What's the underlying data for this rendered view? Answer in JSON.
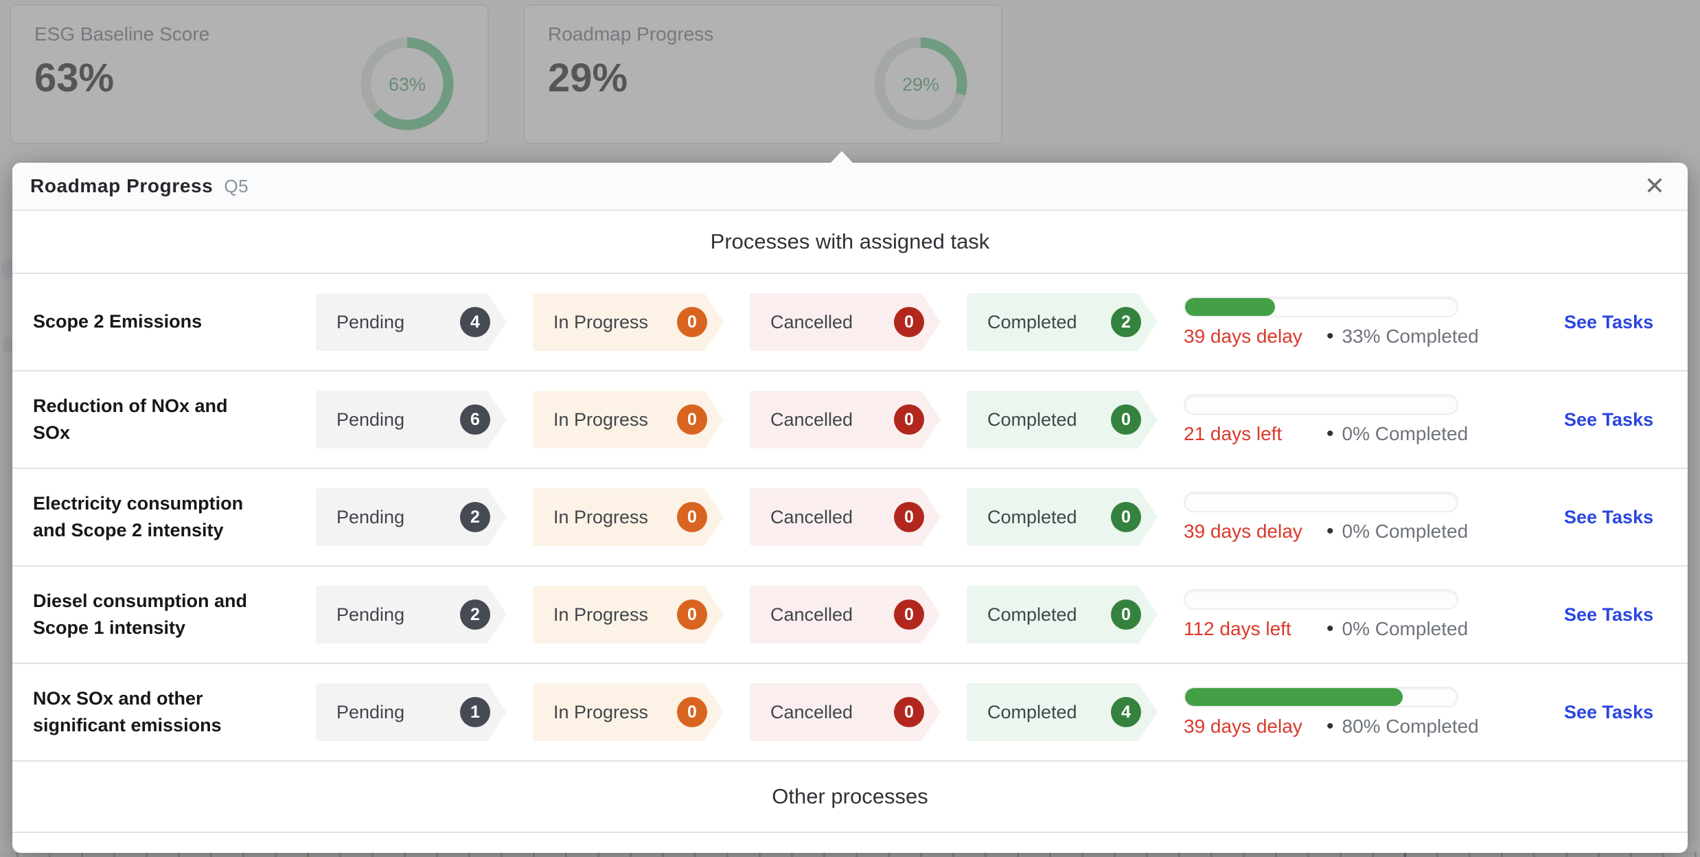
{
  "colors": {
    "accent_green": "#43a047",
    "ring_green": "#57c583",
    "ring_track": "#dde5de",
    "red_text": "#d93a2b",
    "link_blue": "#2b46e0",
    "pending_badge": "#454a53",
    "inprogress_badge": "#d9641f",
    "cancelled_badge": "#b2271d",
    "completed_badge": "#35823e"
  },
  "overview_cards": [
    {
      "title": "ESG Baseline Score",
      "value": "63%",
      "percent": 63,
      "ring_label": "63%"
    },
    {
      "title": "Roadmap Progress",
      "value": "29%",
      "percent": 29,
      "ring_label": "29%"
    }
  ],
  "modal": {
    "title": "Roadmap Progress",
    "subtitle": "Q5",
    "close_label": "✕",
    "section1_heading": "Processes with assigned task",
    "section2_heading": "Other processes",
    "statuses": [
      "Pending",
      "In Progress",
      "Cancelled",
      "Completed"
    ],
    "separator": "•",
    "see_tasks_label": "See Tasks",
    "rows": [
      {
        "name": "Scope 2 Emissions",
        "pending": 4,
        "in_progress": 0,
        "cancelled": 0,
        "completed": 2,
        "progress_pct": 33,
        "days_text": "39 days delay",
        "completed_text": "33% Completed"
      },
      {
        "name": "Reduction of NOx and SOx",
        "pending": 6,
        "in_progress": 0,
        "cancelled": 0,
        "completed": 0,
        "progress_pct": 0,
        "days_text": "21 days left",
        "completed_text": "0% Completed"
      },
      {
        "name": "Electricity consumption and Scope 2 intensity",
        "pending": 2,
        "in_progress": 0,
        "cancelled": 0,
        "completed": 0,
        "progress_pct": 0,
        "days_text": "39 days delay",
        "completed_text": "0% Completed"
      },
      {
        "name": "Diesel consumption and Scope 1 intensity",
        "pending": 2,
        "in_progress": 0,
        "cancelled": 0,
        "completed": 0,
        "progress_pct": 0,
        "days_text": "112 days left",
        "completed_text": "0% Completed"
      },
      {
        "name": "NOx SOx and other significant emissions",
        "pending": 1,
        "in_progress": 0,
        "cancelled": 0,
        "completed": 4,
        "progress_pct": 80,
        "days_text": "39 days delay",
        "completed_text": "80% Completed"
      }
    ]
  }
}
